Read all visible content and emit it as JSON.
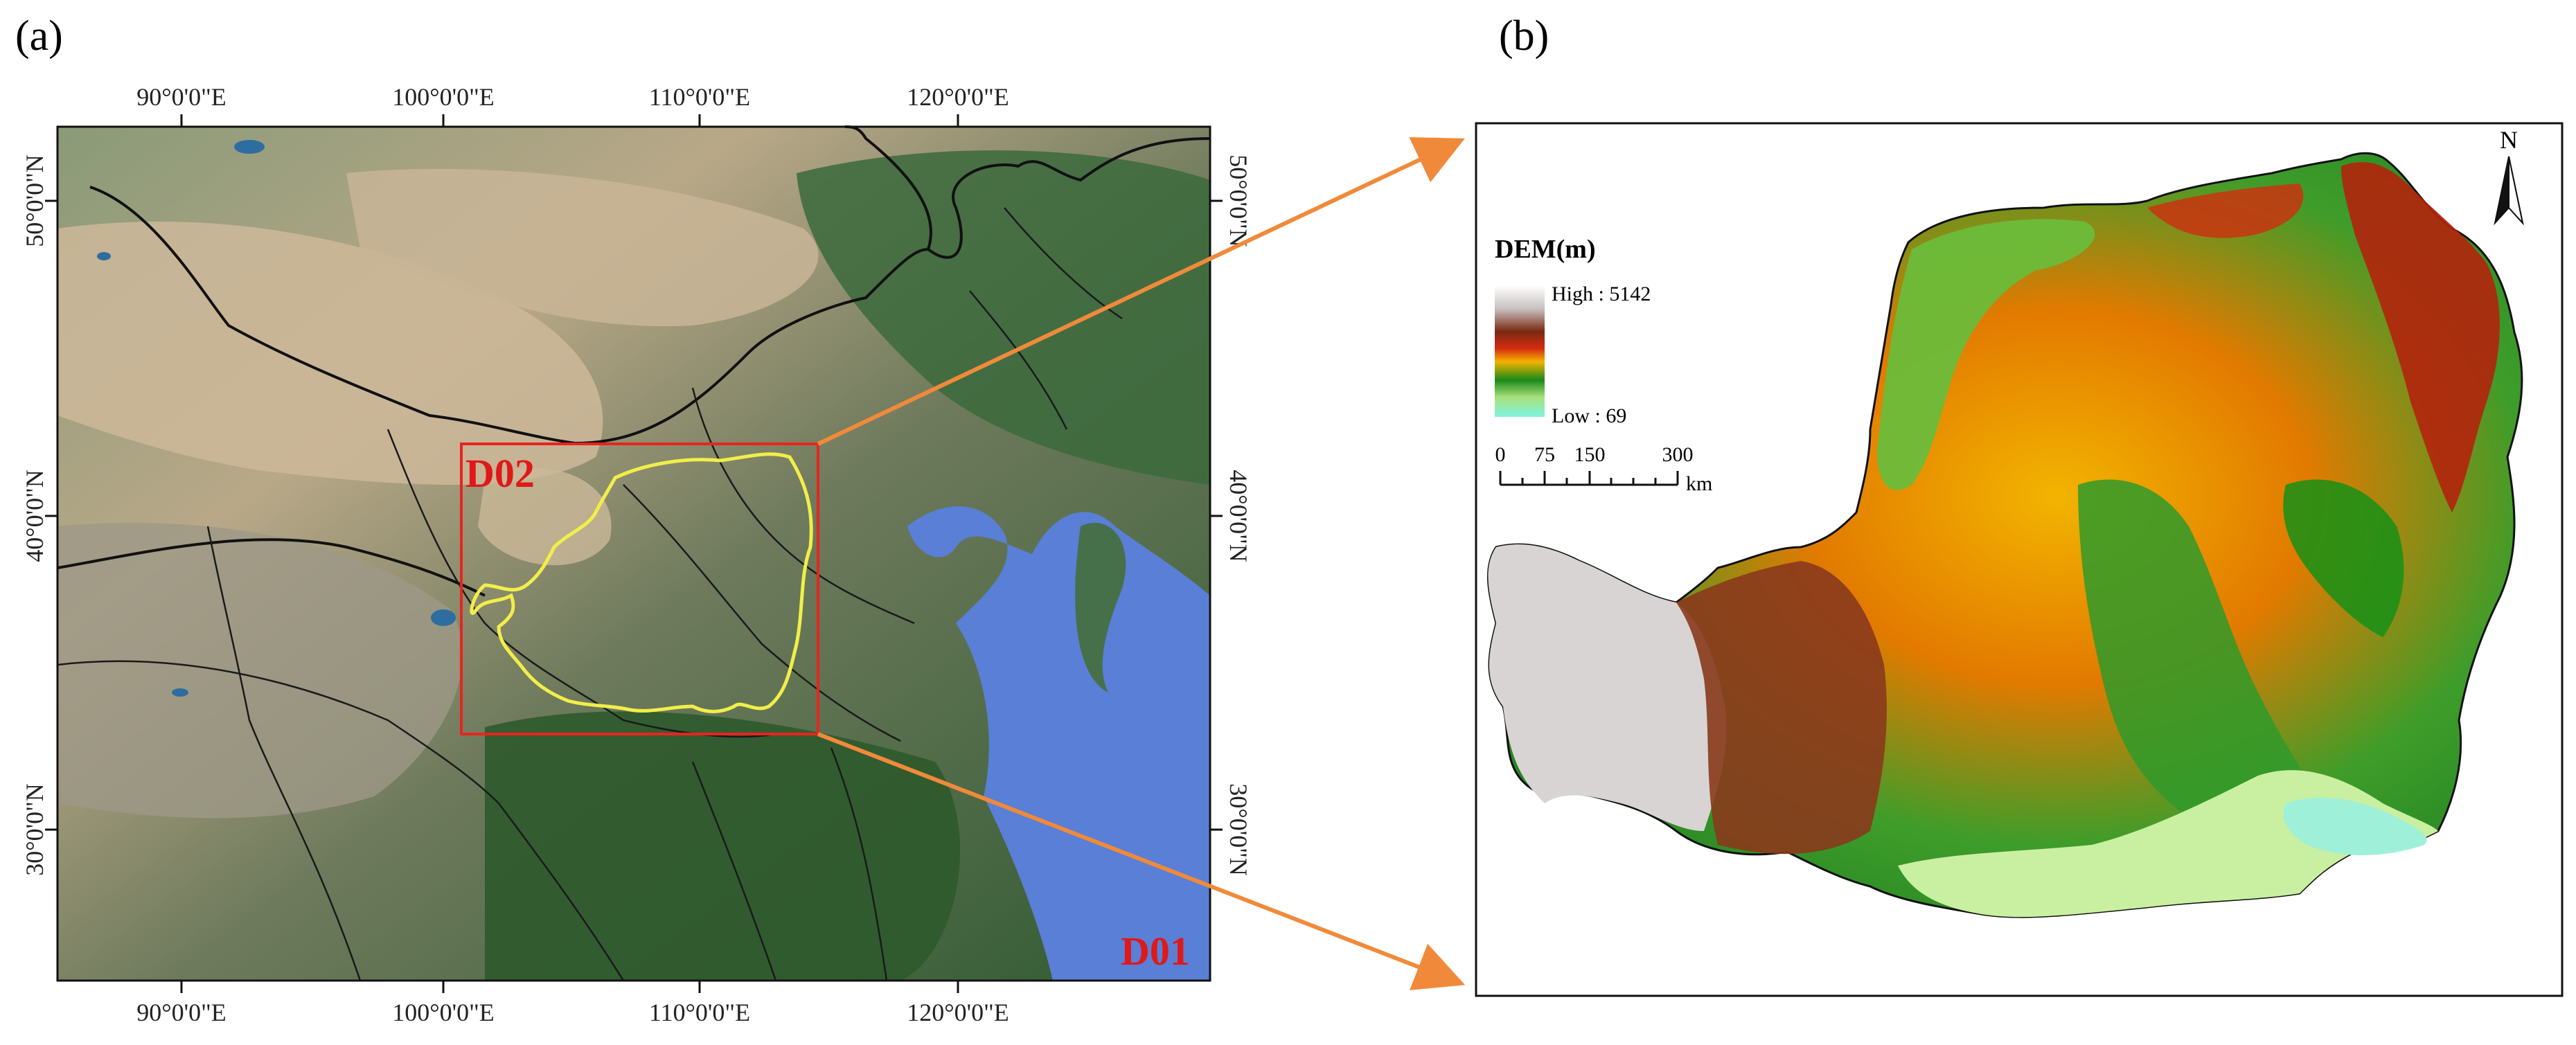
{
  "panels": {
    "a": {
      "label": "(a)",
      "lon_labels": [
        "90°0'0\"E",
        "100°0'0\"E",
        "110°0'0\"E",
        "120°0'0\"E"
      ],
      "lat_labels": [
        "50°0'0\"N",
        "40°0'0\"N",
        "30°0'0\"N"
      ],
      "domains": {
        "outer": "D01",
        "inner": "D02"
      }
    },
    "b": {
      "label": "(b)",
      "north_label": "N",
      "legend": {
        "title": "DEM(m)",
        "high": "High : 5142",
        "low": "Low : 69"
      },
      "scale_bar": {
        "ticks": [
          "0",
          "75",
          "150",
          "300"
        ],
        "unit": "km"
      }
    }
  },
  "colors": {
    "domain_box": "#e8241f",
    "domain_label": "#e01818",
    "study_area_outline": "#f1ee4a",
    "arrow": "#f08a3a",
    "sea": "#5a7fd6",
    "land_green": "#3f6a3a",
    "desert": "#c9b89a"
  }
}
